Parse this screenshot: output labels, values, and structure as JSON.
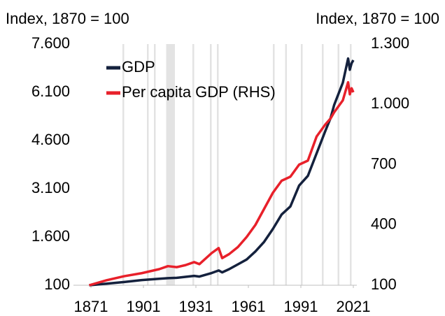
{
  "chart_data": {
    "type": "line",
    "y_axis_title": "Index, 1870 = 100",
    "y2_axis_title": "Index, 1870 = 100",
    "x": [
      1870,
      1880,
      1890,
      1900,
      1910,
      1915,
      1920,
      1925,
      1930,
      1933,
      1940,
      1944,
      1946,
      1950,
      1955,
      1960,
      1965,
      1970,
      1975,
      1980,
      1985,
      1990,
      1995,
      2000,
      2005,
      2008,
      2010,
      2015,
      2018,
      2019,
      2020,
      2021
    ],
    "series": [
      {
        "name": "GDP",
        "color": "#14213d",
        "axis": "y",
        "values": [
          100,
          150,
          200,
          260,
          300,
          320,
          330,
          360,
          390,
          370,
          480,
          560,
          500,
          600,
          750,
          900,
          1150,
          1450,
          1850,
          2300,
          2550,
          3200,
          3500,
          4200,
          4900,
          5300,
          5700,
          6400,
          7150,
          6800,
          7000,
          7100
        ]
      },
      {
        "name": "Per capita GDP (RHS)",
        "color": "#e8202a",
        "axis": "y2",
        "values": [
          100,
          125,
          145,
          160,
          180,
          195,
          190,
          200,
          215,
          205,
          260,
          285,
          235,
          255,
          290,
          340,
          400,
          480,
          560,
          620,
          640,
          700,
          720,
          840,
          900,
          930,
          960,
          1020,
          1110,
          1050,
          1080,
          1060
        ]
      }
    ],
    "shaded_periods": [
      [
        1889,
        1890
      ],
      [
        1903,
        1904
      ],
      [
        1907,
        1908
      ],
      [
        1914,
        1919
      ],
      [
        1929,
        1930
      ],
      [
        1939,
        1940
      ],
      [
        1943,
        1944
      ],
      [
        1975,
        1976
      ],
      [
        1982,
        1983
      ],
      [
        1991,
        1992
      ],
      [
        2003,
        2004
      ],
      [
        2012,
        2013
      ],
      [
        2019,
        2020
      ]
    ],
    "shade_color": "#e3e3e3",
    "xlim": [
      1861,
      2023
    ],
    "xticks": [
      1871,
      1901,
      1931,
      1961,
      1991,
      2021
    ],
    "ylim": [
      100,
      7600
    ],
    "yticks": [
      100,
      {
        "value": 1600,
        "label": "1.600"
      },
      {
        "value": 3100,
        "label": "3.100"
      },
      {
        "value": 4600,
        "label": "4.600"
      },
      {
        "value": 6100,
        "label": "6.100"
      },
      {
        "value": 7600,
        "label": "7.600"
      }
    ],
    "y2lim": [
      100,
      1300
    ],
    "y2ticks": [
      100,
      400,
      700,
      {
        "value": 1000,
        "label": "1.000"
      },
      {
        "value": 1300,
        "label": "1.300"
      }
    ],
    "legend": "upper left"
  }
}
